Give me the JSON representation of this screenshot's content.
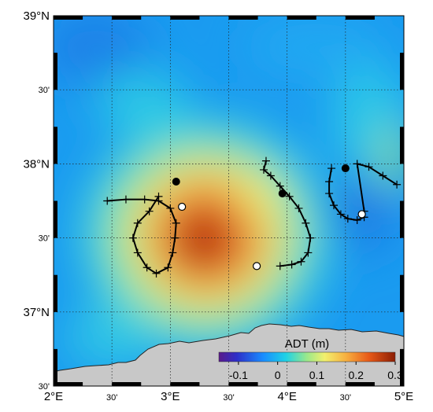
{
  "map": {
    "lon_range": [
      2,
      5
    ],
    "lat_range": [
      36.5,
      39
    ],
    "lon_ticks": [
      {
        "value": 2.0,
        "label": "2°E",
        "major": true
      },
      {
        "value": 2.5,
        "label": "30'",
        "major": false
      },
      {
        "value": 3.0,
        "label": "3°E",
        "major": true
      },
      {
        "value": 3.5,
        "label": "30'",
        "major": false
      },
      {
        "value": 4.0,
        "label": "4°E",
        "major": true
      },
      {
        "value": 4.5,
        "label": "30'",
        "major": false
      },
      {
        "value": 5.0,
        "label": "5°E",
        "major": true
      }
    ],
    "lat_ticks": [
      {
        "value": 39.0,
        "label": "39°N",
        "major": true
      },
      {
        "value": 38.5,
        "label": "30'",
        "major": false
      },
      {
        "value": 38.0,
        "label": "38°N",
        "major": true
      },
      {
        "value": 37.5,
        "label": "30'",
        "major": false
      },
      {
        "value": 37.0,
        "label": "37°N",
        "major": true
      },
      {
        "value": 36.5,
        "label": "30'",
        "major": false
      }
    ],
    "colorbar": {
      "title": "ADT (m)",
      "range": [
        -0.15,
        0.3
      ],
      "ticks": [
        {
          "value": -0.1,
          "label": "-0.1"
        },
        {
          "value": 0.0,
          "label": "0"
        },
        {
          "value": 0.1,
          "label": "0.1"
        },
        {
          "value": 0.2,
          "label": "0.2"
        },
        {
          "value": 0.3,
          "label": "0.3"
        }
      ],
      "colormap": "jet"
    },
    "land_color": "#c8c8c8",
    "track_color": "#000000",
    "tracks": [
      {
        "name": "",
        "points": [
          [
            2.9,
            37.78
          ],
          [
            2.82,
            37.68
          ],
          [
            2.72,
            37.6
          ],
          [
            2.68,
            37.5
          ],
          [
            2.72,
            37.4
          ],
          [
            2.8,
            37.3
          ],
          [
            2.88,
            37.26
          ],
          [
            2.98,
            37.3
          ],
          [
            3.02,
            37.4
          ],
          [
            3.04,
            37.5
          ],
          [
            3.05,
            37.6
          ],
          [
            3.0,
            37.7
          ],
          [
            2.9,
            37.75
          ],
          [
            2.78,
            37.76
          ],
          [
            2.62,
            37.76
          ],
          [
            2.46,
            37.75
          ]
        ],
        "start": [
          3.05,
          37.88
        ],
        "end": [
          3.1,
          37.71
        ]
      },
      {
        "name": "",
        "points": [
          [
            3.82,
            38.02
          ],
          [
            3.8,
            37.96
          ],
          [
            3.86,
            37.92
          ],
          [
            3.94,
            37.85
          ],
          [
            4.02,
            37.78
          ],
          [
            4.1,
            37.7
          ],
          [
            4.16,
            37.6
          ],
          [
            4.2,
            37.5
          ],
          [
            4.18,
            37.4
          ],
          [
            4.12,
            37.34
          ],
          [
            4.04,
            37.32
          ],
          [
            3.94,
            37.31
          ]
        ],
        "start": [
          3.96,
          37.8
        ],
        "end": [
          3.74,
          37.31
        ]
      },
      {
        "name": "",
        "points": [
          [
            4.38,
            37.97
          ],
          [
            4.36,
            37.88
          ],
          [
            4.36,
            37.8
          ],
          [
            4.4,
            37.72
          ],
          [
            4.46,
            37.66
          ],
          [
            4.52,
            37.63
          ],
          [
            4.6,
            37.62
          ],
          [
            4.66,
            37.64
          ],
          [
            4.66,
            37.68
          ],
          [
            4.6,
            38.0
          ],
          [
            4.7,
            37.98
          ],
          [
            4.82,
            37.92
          ],
          [
            4.94,
            37.86
          ]
        ],
        "start": [
          4.5,
          37.97
        ],
        "end": [
          4.64,
          37.66
        ]
      }
    ]
  }
}
